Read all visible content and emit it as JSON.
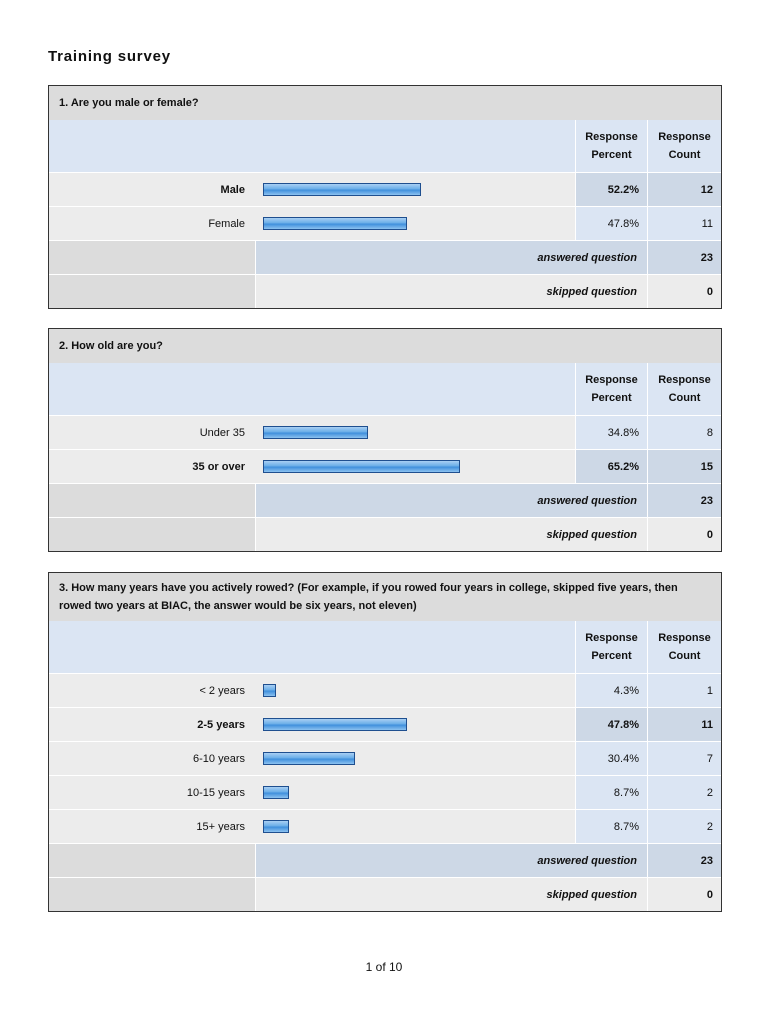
{
  "title": "Training survey",
  "columns": {
    "percent": [
      "Response",
      "Percent"
    ],
    "count": [
      "Response",
      "Count"
    ]
  },
  "summary_labels": {
    "answered": "answered question",
    "skipped": "skipped question"
  },
  "questions": [
    {
      "question": "1. Are you male or female?",
      "rows": [
        {
          "label": "Male",
          "percent": "52.2%",
          "count": "12",
          "share": 52.2,
          "bold": true
        },
        {
          "label": "Female",
          "percent": "47.8%",
          "count": "11",
          "share": 47.8,
          "bold": false
        }
      ],
      "answered": "23",
      "skipped": "0"
    },
    {
      "question": "2. How old are you?",
      "rows": [
        {
          "label": "Under 35",
          "percent": "34.8%",
          "count": "8",
          "share": 34.8,
          "bold": false
        },
        {
          "label": "35 or over",
          "percent": "65.2%",
          "count": "15",
          "share": 65.2,
          "bold": true
        }
      ],
      "answered": "23",
      "skipped": "0"
    },
    {
      "question": "3. How many years have you actively rowed? (For example, if you rowed four years in college, skipped five years, then rowed two years at BIAC, the answer would be six years, not eleven)",
      "rows": [
        {
          "label": "< 2 years",
          "percent": "4.3%",
          "count": "1",
          "share": 4.3,
          "bold": false
        },
        {
          "label": "2-5 years",
          "percent": "47.8%",
          "count": "11",
          "share": 47.8,
          "bold": true
        },
        {
          "label": "6-10 years",
          "percent": "30.4%",
          "count": "7",
          "share": 30.4,
          "bold": false
        },
        {
          "label": "10-15 years",
          "percent": "8.7%",
          "count": "2",
          "share": 8.7,
          "bold": false
        },
        {
          "label": "15+ years",
          "percent": "8.7%",
          "count": "2",
          "share": 8.7,
          "bold": false
        }
      ],
      "answered": "23",
      "skipped": "0"
    }
  ],
  "footer": "1 of 10"
}
